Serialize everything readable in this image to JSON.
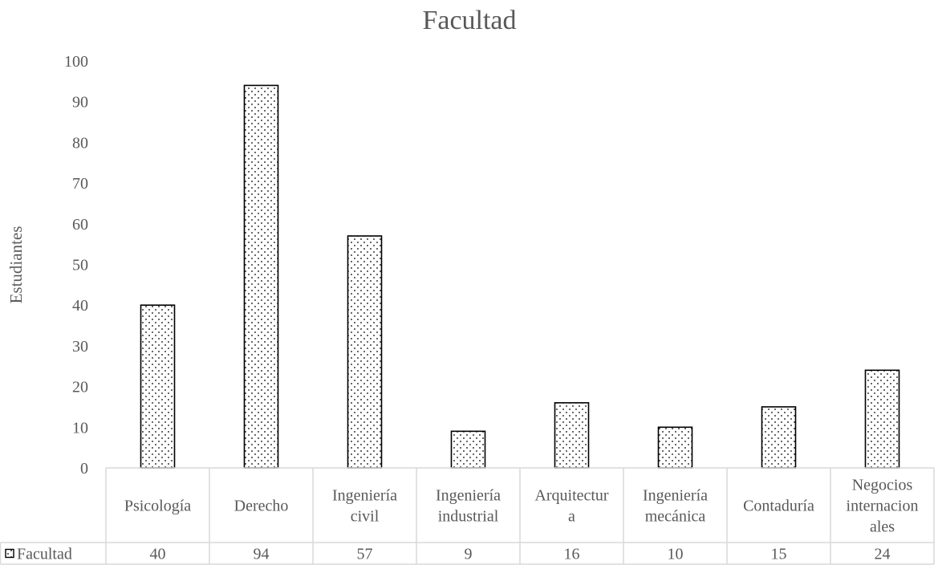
{
  "chart_data": {
    "type": "bar",
    "title": "Facultad",
    "xlabel": "",
    "ylabel": "Estudiantes",
    "ylim": [
      0,
      100
    ],
    "yticks": [
      0,
      10,
      20,
      30,
      40,
      50,
      60,
      70,
      80,
      90,
      100
    ],
    "grid": false,
    "legend": "data-table",
    "categories": [
      [
        "Psicología"
      ],
      [
        "Derecho"
      ],
      [
        "Ingeniería",
        "civil"
      ],
      [
        "Ingeniería",
        "industrial"
      ],
      [
        "Arquitectur",
        "a"
      ],
      [
        "Ingeniería",
        "mecánica"
      ],
      [
        "Contaduría"
      ],
      [
        "Negocios",
        "internacion",
        "ales"
      ]
    ],
    "series": [
      {
        "name": "Facultad",
        "values": [
          40,
          94,
          57,
          9,
          16,
          10,
          15,
          24
        ]
      }
    ],
    "colors": {
      "bar_fill": "#ffffff",
      "bar_stroke": "#000000",
      "dot": "#000000",
      "text": "#595959",
      "table_line": "#d9d9d9"
    }
  }
}
